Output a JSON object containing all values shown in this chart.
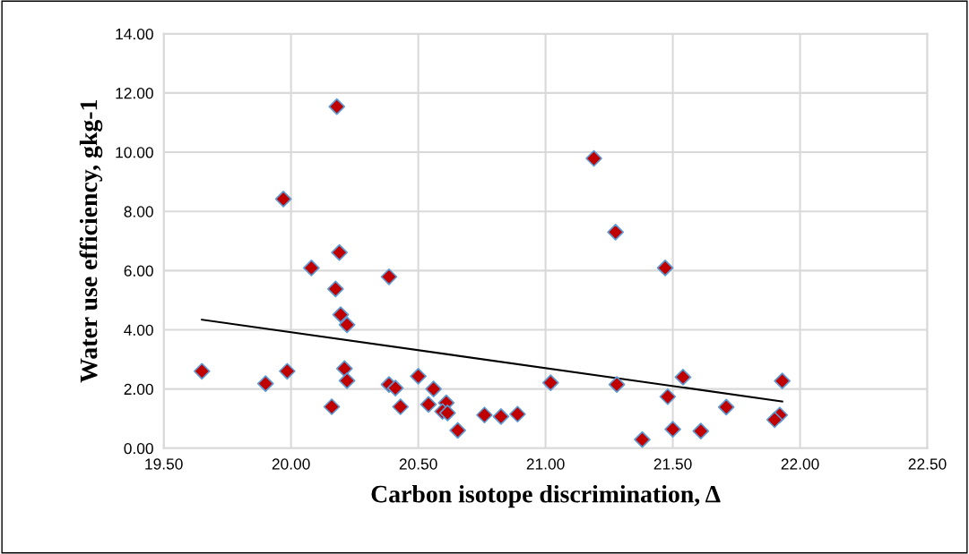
{
  "chart_data": {
    "type": "scatter",
    "xlabel": "Carbon isotope discrimination, Δ",
    "ylabel": "Water use efficiency, gkg-1",
    "xlim": [
      19.5,
      22.5
    ],
    "ylim": [
      0,
      14
    ],
    "xticks": [
      {
        "value": 19.5,
        "label": "19.50"
      },
      {
        "value": 20,
        "label": "20.00"
      },
      {
        "value": 20.5,
        "label": "20.50"
      },
      {
        "value": 21,
        "label": "21.00"
      },
      {
        "value": 21.5,
        "label": "21.50"
      },
      {
        "value": 22,
        "label": "22.00"
      },
      {
        "value": 22.5,
        "label": "22.50"
      }
    ],
    "yticks": [
      {
        "value": 0,
        "label": "0.00"
      },
      {
        "value": 2,
        "label": "2.00"
      },
      {
        "value": 4,
        "label": "4.00"
      },
      {
        "value": 6,
        "label": "6.00"
      },
      {
        "value": 8,
        "label": "8.00"
      },
      {
        "value": 10,
        "label": "10.00"
      },
      {
        "value": 12,
        "label": "12.00"
      },
      {
        "value": 14,
        "label": "14.00"
      }
    ],
    "grid": true,
    "legend": false,
    "marker": "diamond",
    "series": [
      {
        "color": "#c00000",
        "x": [
          20.18,
          19.97,
          20.19,
          20.08,
          20.385,
          20.175,
          20.195,
          20.22,
          19.65,
          19.985,
          20.21,
          19.9,
          20.22,
          20.16,
          20.385,
          20.41,
          20.43,
          20.5,
          20.56,
          20.54,
          20.61,
          20.595,
          20.615,
          20.655,
          20.76,
          20.825,
          20.89,
          21.02,
          21.28,
          21.38,
          21.19,
          21.275,
          21.47,
          21.54,
          21.48,
          21.5,
          21.61,
          21.71,
          21.93,
          21.92,
          21.9
        ],
        "values": [
          11.54,
          8.42,
          6.61,
          6.09,
          5.79,
          5.38,
          4.51,
          4.17,
          2.6,
          2.6,
          2.69,
          2.18,
          2.28,
          1.4,
          2.15,
          2.03,
          1.4,
          2.43,
          2.0,
          1.48,
          1.53,
          1.24,
          1.19,
          0.6,
          1.12,
          1.07,
          1.15,
          2.21,
          2.15,
          0.29,
          9.79,
          7.3,
          6.09,
          2.4,
          1.74,
          0.64,
          0.58,
          1.39,
          2.27,
          1.12,
          0.96
        ]
      },
      {
        "type": "line",
        "color": "#000000",
        "marker": "none",
        "line_style": "solid",
        "x": [
          19.65,
          21.93
        ],
        "values": [
          4.34,
          1.58
        ]
      }
    ]
  }
}
